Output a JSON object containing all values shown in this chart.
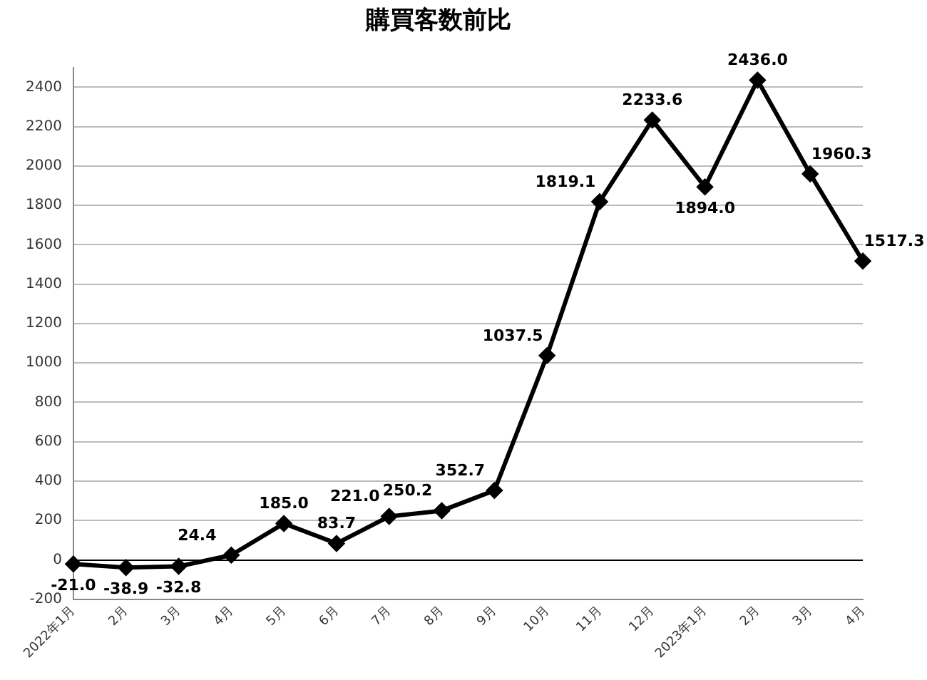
{
  "chart_data": {
    "type": "line",
    "title": "購買客数前比",
    "categories": [
      "2022年1月",
      "2月",
      "3月",
      "4月",
      "5月",
      "6月",
      "7月",
      "8月",
      "9月",
      "10月",
      "11月",
      "12月",
      "2023年1月",
      "2月",
      "3月",
      "4月"
    ],
    "series": [
      {
        "color": "#000000",
        "values": [
          -21.0,
          -38.9,
          -32.8,
          24.4,
          185.0,
          83.7,
          221.0,
          250.2,
          352.7,
          1037.5,
          1819.1,
          2233.6,
          1894.0,
          2436.0,
          1960.3,
          1517.3
        ],
        "value_labels": [
          "-21.0",
          "-38.9",
          "-32.8",
          "24.4",
          "185.0",
          "83.7",
          "221.0",
          "250.2",
          "352.7",
          "1037.5",
          "1819.1",
          "2233.6",
          "1894.0",
          "2436.0",
          "1960.3",
          "1517.3"
        ]
      }
    ],
    "ylim": [
      -200,
      2500
    ],
    "yticks": [
      -200,
      0,
      200,
      400,
      600,
      800,
      1000,
      1200,
      1400,
      1600,
      1800,
      2000,
      2200,
      2400
    ],
    "grid": "y",
    "legend": false,
    "marker": "diamond",
    "line_style": "solid"
  }
}
